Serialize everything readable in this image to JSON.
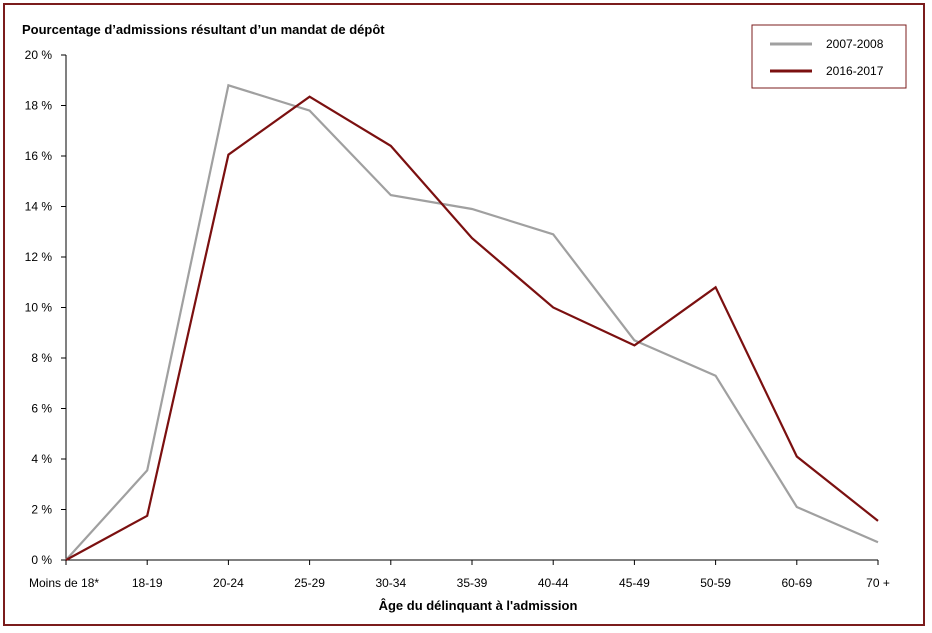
{
  "chart_data": {
    "type": "line",
    "title": "",
    "ylabel": "Pourcentage d’admissions résultant d’un mandat de dépôt",
    "xlabel": "Âge du délinquant à l'admission",
    "categories": [
      "Moins de 18*",
      "18-19",
      "20-24",
      "25-29",
      "30-34",
      "35-39",
      "40-44",
      "45-49",
      "50-59",
      "60-69",
      "70 +"
    ],
    "ylim": [
      0,
      20
    ],
    "yticks": [
      0,
      2,
      4,
      6,
      8,
      10,
      12,
      14,
      16,
      18,
      20
    ],
    "ytick_labels": [
      "0 %",
      "2 %",
      "4 %",
      "6 %",
      "8 %",
      "10 %",
      "12 %",
      "14 %",
      "16 %",
      "18 %",
      "20 %"
    ],
    "grid": false,
    "legend_position": "top-right",
    "series": [
      {
        "name": "2007-2008",
        "color": "#a0a0a0",
        "values": [
          0,
          3.55,
          18.8,
          17.8,
          14.45,
          13.9,
          12.9,
          8.7,
          7.3,
          2.1,
          0.7
        ]
      },
      {
        "name": "2016-2017",
        "color": "#7b1010",
        "values": [
          0,
          1.75,
          16.05,
          18.35,
          16.4,
          12.75,
          10.0,
          8.5,
          10.8,
          4.1,
          1.55
        ]
      }
    ]
  }
}
